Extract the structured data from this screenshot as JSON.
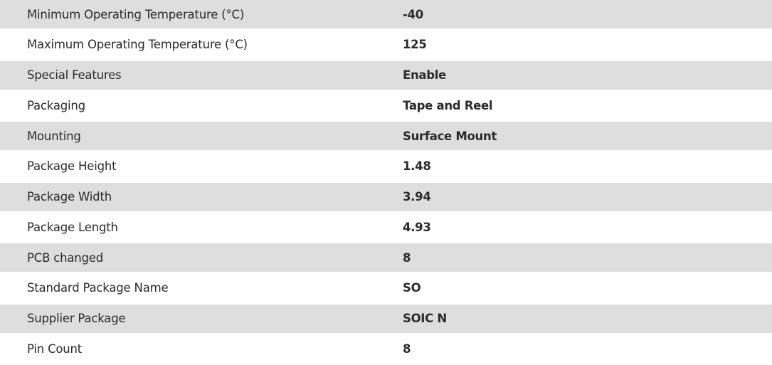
{
  "specs": [
    {
      "label": "Minimum Operating Temperature (°C)",
      "value": "-40"
    },
    {
      "label": "Maximum Operating Temperature (°C)",
      "value": "125"
    },
    {
      "label": "Special Features",
      "value": "Enable"
    },
    {
      "label": "Packaging",
      "value": "Tape and Reel"
    },
    {
      "label": "Mounting",
      "value": "Surface Mount"
    },
    {
      "label": "Package Height",
      "value": "1.48"
    },
    {
      "label": "Package Width",
      "value": "3.94"
    },
    {
      "label": "Package Length",
      "value": "4.93"
    },
    {
      "label": "PCB changed",
      "value": "8"
    },
    {
      "label": "Standard Package Name",
      "value": "SO"
    },
    {
      "label": "Supplier Package",
      "value": "SOIC N"
    },
    {
      "label": "Pin Count",
      "value": "8"
    }
  ],
  "colors": {
    "stripe": "#dedede",
    "text": "#2b2b2b"
  }
}
